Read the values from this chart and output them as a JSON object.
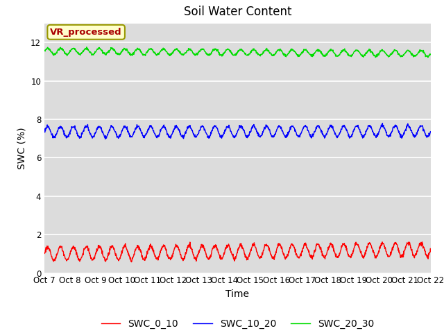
{
  "title": "Soil Water Content",
  "xlabel": "Time",
  "ylabel": "SWC (%)",
  "annotation_text": "VR_processed",
  "annotation_color": "#aa0000",
  "annotation_bg": "#ffffcc",
  "annotation_border": "#999900",
  "ylim": [
    0,
    13
  ],
  "yticks": [
    0,
    2,
    4,
    6,
    8,
    10,
    12
  ],
  "n_points": 1500,
  "series": [
    {
      "label": "SWC_0_10",
      "color": "#ff0000",
      "base": 1.0,
      "amplitude": 0.35,
      "freq_per_day": 2.0,
      "trend": 0.015,
      "noise_scale": 0.05,
      "noise_seed": 1
    },
    {
      "label": "SWC_10_20",
      "color": "#0000ff",
      "base": 7.35,
      "amplitude": 0.28,
      "freq_per_day": 2.0,
      "trend": 0.003,
      "noise_scale": 0.04,
      "noise_seed": 2
    },
    {
      "label": "SWC_20_30",
      "color": "#00dd00",
      "base": 11.55,
      "amplitude": 0.15,
      "freq_per_day": 2.0,
      "trend": -0.008,
      "noise_scale": 0.03,
      "noise_seed": 3
    }
  ],
  "tick_labels": [
    "Oct 7",
    "Oct 8",
    "Oct 9",
    "Oct 10",
    "Oct 11",
    "Oct 12",
    "Oct 13",
    "Oct 14",
    "Oct 15",
    "Oct 16",
    "Oct 17",
    "Oct 18",
    "Oct 19",
    "Oct 20",
    "Oct 21",
    "Oct 22"
  ],
  "plot_bg": "#dcdcdc",
  "fig_bg": "#ffffff",
  "grid_color": "#ffffff",
  "title_fontsize": 12,
  "label_fontsize": 10,
  "tick_fontsize": 8.5,
  "line_width": 1.0
}
